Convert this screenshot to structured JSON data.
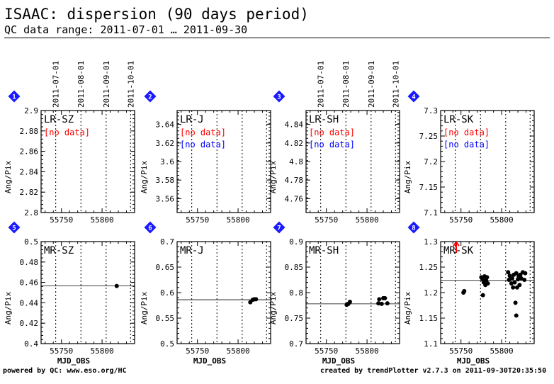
{
  "header": {
    "title": "ISAAC: dispersion (90 days period)",
    "subtitle": "QC data range: 2011-07-01 … 2011-09-30"
  },
  "footer": {
    "left": "powered by QC: www.eso.org/HC",
    "right": "created by trendPlotter v2.7.3 on 2011-09-30T20:35:50"
  },
  "colors": {
    "no_data_red": "#ff0000",
    "no_data_blue": "#0000ff",
    "badge": "#1a1aff",
    "trend_arrow": "#ff0000"
  },
  "no_data_text": "[no data]",
  "chart_data": [
    {
      "type": "scatter",
      "number": "1",
      "name": "LR-SZ",
      "ylabel": "Ang/Pix",
      "xlabel": "",
      "xlim": [
        55725,
        55840
      ],
      "ylim": [
        2.8,
        2.9
      ],
      "yticks": [
        "2.8",
        "2.82",
        "2.84",
        "2.86",
        "2.88",
        "2.9"
      ],
      "xticks": [
        "55750",
        "55800"
      ],
      "date_ticks": [
        "2011-07-01",
        "2011-08-01",
        "2011-09-01",
        "2011-10-01"
      ],
      "date_mjd": [
        55743,
        55774,
        55805,
        55835
      ],
      "no_data": [
        "red"
      ],
      "points": [],
      "ref_line": null
    },
    {
      "type": "scatter",
      "number": "2",
      "name": "LR-J",
      "ylabel": "Ang/Pix",
      "xlabel": "",
      "xlim": [
        55725,
        55840
      ],
      "ylim": [
        3.545,
        3.655
      ],
      "yticks": [
        "3.56",
        "3.58",
        "3.6",
        "3.62",
        "3.64"
      ],
      "xticks": [
        "55750",
        "55800"
      ],
      "date_ticks": [],
      "date_mjd": [
        55743,
        55774,
        55805,
        55835
      ],
      "no_data": [
        "red",
        "blue"
      ],
      "points": [],
      "ref_line": null
    },
    {
      "type": "scatter",
      "number": "3",
      "name": "LR-SH",
      "ylabel": "Ang/Pix",
      "xlabel": "",
      "xlim": [
        55725,
        55840
      ],
      "ylim": [
        4.745,
        4.855
      ],
      "yticks": [
        "4.76",
        "4.78",
        "4.8",
        "4.82",
        "4.84"
      ],
      "xticks": [
        "55750",
        "55800"
      ],
      "date_ticks": [
        "2011-07-01",
        "2011-08-01",
        "2011-09-01",
        "2011-10-01"
      ],
      "date_mjd": [
        55743,
        55774,
        55805,
        55835
      ],
      "no_data": [
        "red",
        "blue"
      ],
      "points": [],
      "ref_line": null
    },
    {
      "type": "scatter",
      "number": "4",
      "name": "LR-SK",
      "ylabel": "Ang/Pix",
      "xlabel": "",
      "xlim": [
        55725,
        55840
      ],
      "ylim": [
        7.1,
        7.3
      ],
      "yticks": [
        "7.1",
        "7.15",
        "7.2",
        "7.25",
        "7.3"
      ],
      "xticks": [
        "55750",
        "55800"
      ],
      "date_ticks": [],
      "date_mjd": [
        55743,
        55774,
        55805,
        55835
      ],
      "no_data": [
        "red",
        "blue"
      ],
      "points": [],
      "ref_line": null
    },
    {
      "type": "scatter",
      "number": "5",
      "name": "MR-SZ",
      "ylabel": "Ang/Pix",
      "xlabel": "MJD_OBS",
      "xlim": [
        55725,
        55840
      ],
      "ylim": [
        0.4,
        0.5
      ],
      "yticks": [
        "0.4",
        "0.42",
        "0.44",
        "0.46",
        "0.48",
        "0.5"
      ],
      "xticks": [
        "55750",
        "55800"
      ],
      "date_ticks": [],
      "date_mjd": [
        55743,
        55774,
        55805,
        55835
      ],
      "no_data": [],
      "points": [
        [
          55818,
          0.4565
        ]
      ],
      "ref_line": 0.4565
    },
    {
      "type": "scatter",
      "number": "6",
      "name": "MR-J",
      "ylabel": "Ang/Pix",
      "xlabel": "MJD_OBS",
      "xlim": [
        55725,
        55840
      ],
      "ylim": [
        0.5,
        0.7
      ],
      "yticks": [
        "0.5",
        "0.55",
        "0.6",
        "0.65",
        "0.7"
      ],
      "xticks": [
        "55750",
        "55800"
      ],
      "date_ticks": [],
      "date_mjd": [
        55743,
        55774,
        55805,
        55835
      ],
      "no_data": [],
      "points": [
        [
          55815,
          0.581
        ],
        [
          55818,
          0.586
        ],
        [
          55820,
          0.587
        ],
        [
          55822,
          0.587
        ]
      ],
      "ref_line": 0.586
    },
    {
      "type": "scatter",
      "number": "7",
      "name": "MR-SH",
      "ylabel": "Ang/Pix",
      "xlabel": "MJD_OBS",
      "xlim": [
        55725,
        55840
      ],
      "ylim": [
        0.7,
        0.9
      ],
      "yticks": [
        "0.7",
        "0.75",
        "0.8",
        "0.85",
        "0.9"
      ],
      "xticks": [
        "55750",
        "55800"
      ],
      "date_ticks": [],
      "date_mjd": [
        55743,
        55774,
        55805,
        55835
      ],
      "no_data": [],
      "points": [
        [
          55775,
          0.776
        ],
        [
          55777,
          0.778
        ],
        [
          55779,
          0.782
        ],
        [
          55814,
          0.779
        ],
        [
          55815,
          0.787
        ],
        [
          55818,
          0.778
        ],
        [
          55820,
          0.789
        ],
        [
          55822,
          0.789
        ],
        [
          55825,
          0.779
        ]
      ],
      "ref_line": 0.778
    },
    {
      "type": "scatter",
      "number": "8",
      "name": "MR-SK",
      "ylabel": "Ang/Pix",
      "xlabel": "MJD_OBS",
      "xlim": [
        55725,
        55840
      ],
      "ylim": [
        1.1,
        1.3
      ],
      "yticks": [
        "1.1",
        "1.15",
        "1.2",
        "1.25",
        "1.3"
      ],
      "xticks": [
        "55750",
        "55800"
      ],
      "date_ticks": [],
      "date_mjd": [
        55743,
        55774,
        55805,
        55835
      ],
      "no_data": [],
      "trend_arrow": true,
      "points": [
        [
          55753,
          1.2
        ],
        [
          55754,
          1.203
        ],
        [
          55775,
          1.23
        ],
        [
          55776,
          1.228
        ],
        [
          55777,
          1.225
        ],
        [
          55777,
          1.195
        ],
        [
          55778,
          1.22
        ],
        [
          55779,
          1.232
        ],
        [
          55780,
          1.215
        ],
        [
          55781,
          1.224
        ],
        [
          55782,
          1.23
        ],
        [
          55783,
          1.218
        ],
        [
          55808,
          1.24
        ],
        [
          55809,
          1.225
        ],
        [
          55810,
          1.233
        ],
        [
          55812,
          1.218
        ],
        [
          55813,
          1.228
        ],
        [
          55814,
          1.21
        ],
        [
          55815,
          1.235
        ],
        [
          55816,
          1.22
        ],
        [
          55817,
          1.18
        ],
        [
          55818,
          1.155
        ],
        [
          55818,
          1.238
        ],
        [
          55819,
          1.21
        ],
        [
          55820,
          1.226
        ],
        [
          55821,
          1.232
        ],
        [
          55822,
          1.215
        ],
        [
          55823,
          1.235
        ],
        [
          55824,
          1.228
        ],
        [
          55826,
          1.24
        ],
        [
          55828,
          1.225
        ],
        [
          55829,
          1.238
        ]
      ],
      "ref_line": 1.224
    }
  ]
}
